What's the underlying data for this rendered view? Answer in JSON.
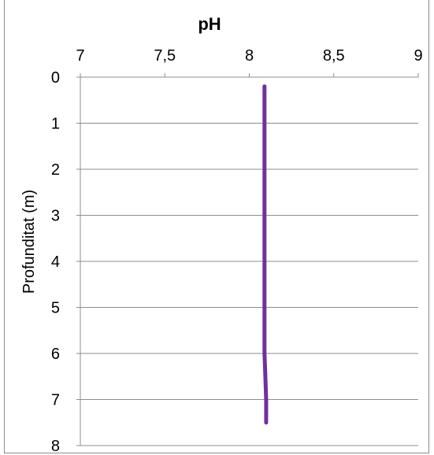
{
  "chart_data": {
    "type": "line",
    "title": "pH",
    "xlabel": "pH",
    "ylabel": "Profunditat (m)",
    "x_axis_position": "top",
    "y_axis_reversed": true,
    "xlim": [
      7,
      9
    ],
    "ylim": [
      0,
      8
    ],
    "x_ticks": [
      7,
      7.5,
      8,
      8.5,
      9
    ],
    "x_tick_labels": [
      "7",
      "7,5",
      "8",
      "8,5",
      "9"
    ],
    "y_ticks": [
      0,
      1,
      2,
      3,
      4,
      5,
      6,
      7,
      8
    ],
    "y_tick_labels": [
      "0",
      "1",
      "2",
      "3",
      "4",
      "5",
      "6",
      "7",
      "8"
    ],
    "grid": "horizontal",
    "series": [
      {
        "color": "#7030a0",
        "points": [
          {
            "x": 8.09,
            "y": 0.2
          },
          {
            "x": 8.09,
            "y": 1.0
          },
          {
            "x": 8.09,
            "y": 2.0
          },
          {
            "x": 8.09,
            "y": 3.0
          },
          {
            "x": 8.09,
            "y": 4.0
          },
          {
            "x": 8.09,
            "y": 5.0
          },
          {
            "x": 8.09,
            "y": 6.0
          },
          {
            "x": 8.095,
            "y": 6.5
          },
          {
            "x": 8.1,
            "y": 7.0
          },
          {
            "x": 8.1,
            "y": 7.5
          }
        ]
      }
    ]
  }
}
